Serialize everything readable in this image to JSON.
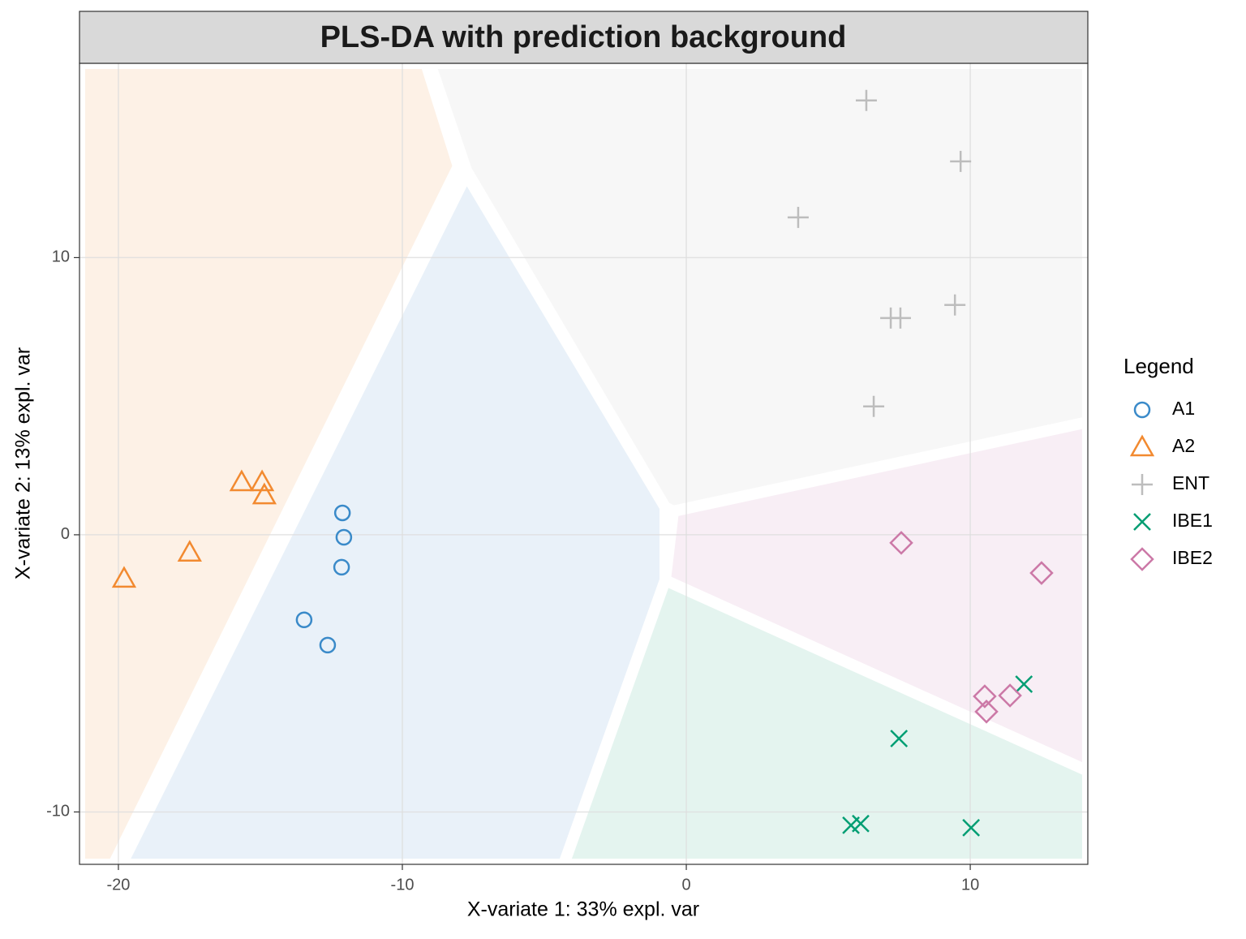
{
  "chart_data": {
    "type": "scatter",
    "title": "PLS-DA with prediction background",
    "x_label": "X-variate 1: 33% expl. var",
    "y_label": "X-variate 2: 13% expl. var",
    "legend_title": "Legend",
    "legend_position": "right",
    "grid": true,
    "xlim": [
      -21.37,
      14.14
    ],
    "ylim": [
      -11.89,
      17.01
    ],
    "xticks": [
      -20,
      -10,
      0,
      10
    ],
    "yticks": [
      -10,
      0,
      10
    ],
    "series": [
      {
        "name": "A1",
        "color": "#3a8ac9",
        "shape": "circle",
        "x": [
          -12.11,
          -12.06,
          -12.14,
          -13.46,
          -12.63
        ],
        "y": [
          0.79,
          -0.09,
          -1.17,
          -3.07,
          -3.98
        ]
      },
      {
        "name": "A2",
        "color": "#f28a30",
        "shape": "triangle",
        "x": [
          -15.66,
          -14.94,
          -14.86,
          -17.49,
          -19.8
        ],
        "y": [
          1.9,
          1.9,
          1.43,
          -0.64,
          -1.58
        ]
      },
      {
        "name": "ENT",
        "color": "#bdbdbd",
        "shape": "plus",
        "x": [
          6.34,
          9.66,
          3.94,
          7.2,
          7.54,
          9.46,
          6.6
        ],
        "y": [
          15.67,
          13.47,
          11.45,
          7.82,
          7.82,
          8.29,
          4.63
        ]
      },
      {
        "name": "IBE1",
        "color": "#009e73",
        "shape": "cross",
        "x": [
          11.89,
          7.49,
          5.8,
          6.14,
          10.03
        ],
        "y": [
          -5.39,
          -7.35,
          -10.48,
          -10.42,
          -10.57
        ]
      },
      {
        "name": "IBE2",
        "color": "#cc79a7",
        "shape": "diamond",
        "x": [
          7.57,
          12.51,
          10.51,
          11.4,
          10.57
        ],
        "y": [
          -0.29,
          -1.38,
          -5.83,
          -5.8,
          -6.38
        ]
      }
    ]
  }
}
